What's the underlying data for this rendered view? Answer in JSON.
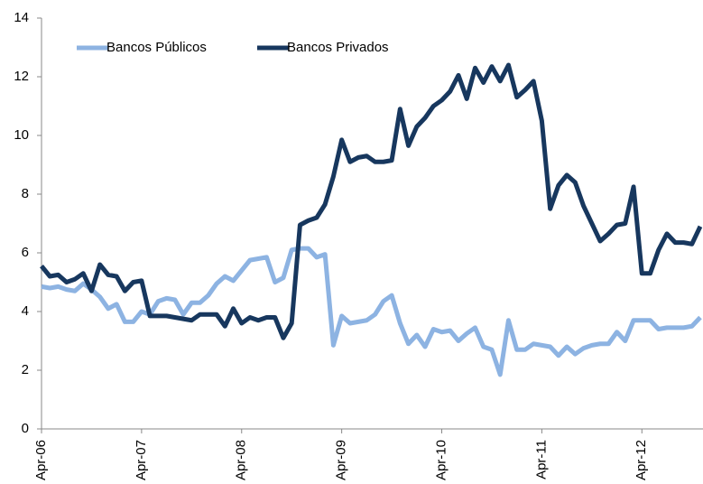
{
  "chart_data": {
    "type": "line",
    "categories": [
      "Apr-06",
      null,
      null,
      null,
      null,
      null,
      null,
      null,
      null,
      null,
      null,
      null,
      "Apr-07",
      null,
      null,
      null,
      null,
      null,
      null,
      null,
      null,
      null,
      null,
      null,
      "Apr-08",
      null,
      null,
      null,
      null,
      null,
      null,
      null,
      null,
      null,
      null,
      null,
      "Apr-09",
      null,
      null,
      null,
      null,
      null,
      null,
      null,
      null,
      null,
      null,
      null,
      "Apr-10",
      null,
      null,
      null,
      null,
      null,
      null,
      null,
      null,
      null,
      null,
      null,
      "Apr-11",
      null,
      null,
      null,
      null,
      null,
      null,
      null,
      null,
      null,
      null,
      null,
      "Apr-12",
      null,
      null,
      null,
      null,
      null,
      null,
      null
    ],
    "series": [
      {
        "name": "Bancos Públicos",
        "color": "#8db3e2",
        "values": [
          4.85,
          4.8,
          4.85,
          4.75,
          4.7,
          4.95,
          4.75,
          4.5,
          4.1,
          4.25,
          3.65,
          3.65,
          4.0,
          3.9,
          4.35,
          4.45,
          4.4,
          3.9,
          4.3,
          4.3,
          4.55,
          4.95,
          5.2,
          5.05,
          5.4,
          5.75,
          5.8,
          5.85,
          5.0,
          5.15,
          6.1,
          6.15,
          6.15,
          5.85,
          5.95,
          2.85,
          3.85,
          3.6,
          3.65,
          3.7,
          3.9,
          4.35,
          4.55,
          3.6,
          2.9,
          3.2,
          2.8,
          3.4,
          3.3,
          3.35,
          3.0,
          3.25,
          3.45,
          2.8,
          2.7,
          1.85,
          3.7,
          2.7,
          2.7,
          2.9,
          2.85,
          2.8,
          2.5,
          2.8,
          2.55,
          2.75,
          2.85,
          2.9,
          2.9,
          3.3,
          3.0,
          3.7,
          3.7,
          3.7,
          3.4,
          3.45,
          3.45,
          3.45,
          3.5,
          3.8
        ]
      },
      {
        "name": "Bancos Privados",
        "color": "#17375e",
        "values": [
          5.55,
          5.2,
          5.25,
          5.0,
          5.1,
          5.3,
          4.7,
          5.6,
          5.25,
          5.2,
          4.7,
          5.0,
          5.05,
          3.85,
          3.85,
          3.85,
          3.8,
          3.75,
          3.7,
          3.9,
          3.9,
          3.9,
          3.5,
          4.1,
          3.6,
          3.8,
          3.7,
          3.8,
          3.8,
          3.1,
          3.6,
          6.95,
          7.1,
          7.2,
          7.65,
          8.6,
          9.85,
          9.1,
          9.25,
          9.3,
          9.1,
          9.1,
          9.15,
          10.9,
          9.65,
          10.3,
          10.6,
          11.0,
          11.2,
          11.5,
          12.05,
          11.25,
          12.3,
          11.8,
          12.35,
          11.85,
          12.4,
          11.3,
          11.55,
          11.85,
          10.5,
          7.5,
          8.3,
          8.65,
          8.4,
          7.6,
          7.0,
          6.4,
          6.65,
          6.95,
          7.0,
          8.25,
          5.3,
          5.3,
          6.1,
          6.65,
          6.35,
          6.35,
          6.3,
          6.9
        ]
      }
    ],
    "ylim": [
      0,
      14
    ],
    "yticks": [
      0,
      2,
      4,
      6,
      8,
      10,
      12,
      14
    ],
    "legend": "top-left"
  }
}
